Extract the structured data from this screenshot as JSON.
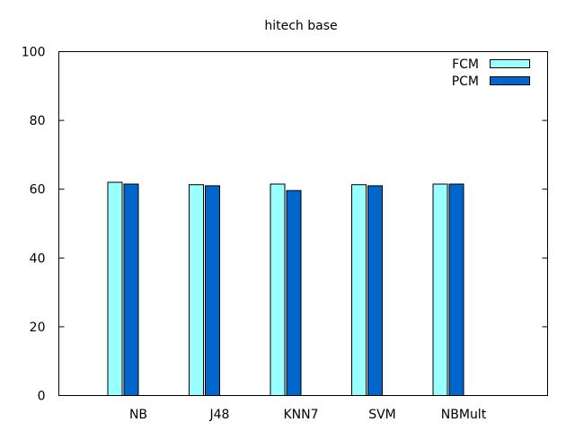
{
  "chart_data": {
    "type": "bar",
    "title": "hitech base",
    "xlabel": "",
    "ylabel": "",
    "categories": [
      "NB",
      "J48",
      "KNN7",
      "SVM",
      "NBMult"
    ],
    "series": [
      {
        "name": "FCM",
        "values": [
          62.0,
          61.3,
          61.5,
          61.3,
          61.5
        ],
        "color": "#99ffff"
      },
      {
        "name": "PCM",
        "values": [
          61.5,
          61.0,
          59.6,
          61.0,
          61.5
        ],
        "color": "#0066cc"
      }
    ],
    "ylim": [
      0,
      100
    ],
    "yticks": [
      "0",
      "20",
      "40",
      "60",
      "80",
      "100"
    ],
    "grid": false,
    "legend_position": "top-right"
  }
}
